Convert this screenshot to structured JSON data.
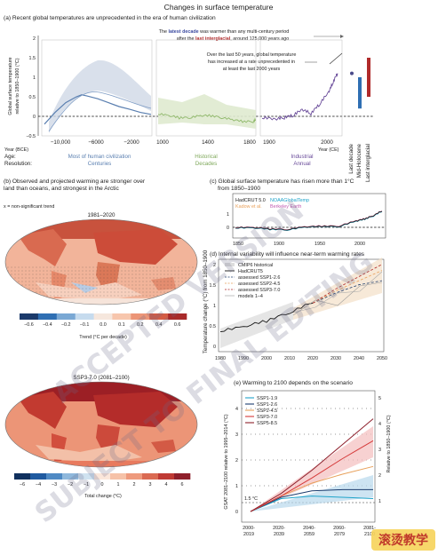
{
  "figure": {
    "title": "Changes in surface temperature",
    "watermark_lines": [
      "ACCEPTED VERSION",
      "SUBJECT TO FINAL EDITING"
    ],
    "logo_text": "滚烫教学"
  },
  "colors": {
    "pi_blue": "#5a7fb0",
    "hist_green": "#8fb86a",
    "industrial_purple": "#6a4c9a",
    "last_decade": "#4a4a8a",
    "mid_holocene": "#2f6fb3",
    "last_interglacial": "#b02a2a",
    "ssp119": "#1ea3c9",
    "ssp126": "#1d3d6e",
    "ssp245": "#e8a05a",
    "ssp370": "#d53a3a",
    "ssp585": "#8e1f2b"
  },
  "panel_a": {
    "heading": "(a) Recent global temperatures are unprecedented in the era of human civilization",
    "annotation_top_1a": "The ",
    "annotation_top_1b": "latest decade",
    "annotation_top_1c": " was warmer than any multi-century period",
    "annotation_top_2a": "after the ",
    "annotation_top_2b": "last interglacial",
    "annotation_top_2c": ", around 125,000 years ago",
    "annotation_mid_1": "Over the last 50 years, global temperature",
    "annotation_mid_2": "has increased at a rate unprecedented in",
    "annotation_mid_3": "at least the last 2000 years",
    "ylabel_1": "Global surface temperature",
    "ylabel_2": "relative to 1850–1900 (°C)",
    "yticks": [
      "2",
      "1.5",
      "1",
      "0.5",
      "0",
      "−0.5"
    ],
    "xlabel_bce": "Year (BCE)",
    "xlabel_ce": "Year (CE)",
    "xticks_1": [
      "−10,000",
      "−6000",
      "−2000"
    ],
    "xticks_2": [
      "1000",
      "1400",
      "1800"
    ],
    "xticks_3": [
      "1900",
      "2000"
    ],
    "age_label": "Age:",
    "resolution_label": "Resolution:",
    "ages": [
      "Most of human civilization",
      "Historical",
      "Industrial"
    ],
    "resolutions": [
      "Centuries",
      "Decades",
      "Annual"
    ],
    "bar_labels": [
      "Last decade",
      "Mid-Holocene",
      "Last interglacial"
    ]
  },
  "panel_b": {
    "heading_1": "(b) Observed and projected warming are stronger over",
    "heading_2": "land than oceans, and strongest in the Arctic",
    "note": "x = non-significant trend",
    "map1_title": "1981–2020",
    "map2_title": "SSP3-7.0 (2081–2100)",
    "cbar1_ticks": [
      "−0.6",
      "−0.4",
      "−0.2",
      "−0.1",
      "0.0",
      "0.1",
      "0.2",
      "0.4",
      "0.6"
    ],
    "cbar1_label": "Trend (°C per decade)",
    "cbar2_ticks": [
      "−6",
      "−4",
      "−3",
      "−2",
      "−1",
      "0",
      "1",
      "2",
      "3",
      "4",
      "6"
    ],
    "cbar2_label": "Total change (°C)"
  },
  "panel_c": {
    "heading_1": "(c) Global surface temperature has risen more than 1°C",
    "heading_2": "from 1850–1900",
    "legend": [
      "HadCRUT 5.0",
      "NOAAGlobalTemp",
      "Kadow et al.",
      "Berkeley Earth"
    ],
    "xticks": [
      "1850",
      "1900",
      "1950",
      "2000"
    ],
    "yticks": [
      "1",
      "0"
    ]
  },
  "panel_d": {
    "heading": "(d) Internal variability will influence near-term warming rates",
    "ylabel": "Temperature change (°C) from 1850–1900",
    "legend": [
      "CMIP6 historical",
      "HadCRUT5",
      "assessed SSP1-2.6",
      "assessed SSP2-4.5",
      "assessed SSP3-7.0",
      "models 1–4"
    ],
    "yticks": [
      "2",
      "1.5",
      "1",
      "0.5",
      "0"
    ],
    "xticks": [
      "1980",
      "1990",
      "2000",
      "2010",
      "2020",
      "2030",
      "2040",
      "2050"
    ]
  },
  "panel_e": {
    "heading": "(e) Warming to 2100 depends on the scenario",
    "ylabel_left": "GSAT 2081–2100 relative to 1995–2014 (°C)",
    "ylabel_right": "Relative to 1850–1900 (°C)",
    "yticks_left": [
      "4",
      "3",
      "2",
      "1",
      "0"
    ],
    "yticks_right": [
      "5",
      "4",
      "3",
      "2",
      "1"
    ],
    "xticks": [
      "2000-\n2019",
      "2020-\n2039",
      "2040-\n2059",
      "2060-\n2079",
      "2081-\n2100"
    ],
    "threshold_label": "1.5 °C",
    "legend": [
      "SSP1-1.9",
      "SSP1-2.6",
      "SSP2-4.5",
      "SSP3-7.0",
      "SSP5-8.5"
    ]
  },
  "chart_data": [
    {
      "panel": "a",
      "type": "line",
      "ylim": [
        -0.5,
        2
      ],
      "series": [
        {
          "segment": "holocene",
          "x": [
            -10000,
            -9000,
            -8000,
            -7000,
            -6500,
            -6000,
            -5000,
            -4000,
            -3000,
            -2000,
            -1000,
            0
          ],
          "y": [
            -0.2,
            0.1,
            0.35,
            0.5,
            0.55,
            0.52,
            0.45,
            0.35,
            0.25,
            0.18,
            0.1,
            0.05
          ]
        },
        {
          "segment": "common_era",
          "x": [
            0,
            200,
            400,
            600,
            800,
            1000,
            1200,
            1400,
            1600,
            1800,
            1850
          ],
          "y": [
            0.05,
            0.0,
            -0.05,
            -0.05,
            0.0,
            0.0,
            -0.05,
            -0.1,
            -0.15,
            -0.15,
            -0.1
          ]
        },
        {
          "segment": "industrial",
          "x": [
            1850,
            1880,
            1900,
            1920,
            1940,
            1960,
            1980,
            2000,
            2010,
            2020
          ],
          "y": [
            -0.05,
            -0.1,
            -0.05,
            0.0,
            0.15,
            0.05,
            0.3,
            0.6,
            0.85,
            1.1
          ]
        }
      ],
      "bars": [
        {
          "name": "Last decade",
          "value": 1.1
        },
        {
          "name": "Mid-Holocene",
          "low": 0.2,
          "high": 1.0
        },
        {
          "name": "Last interglacial",
          "low": 0.5,
          "high": 1.5
        }
      ]
    },
    {
      "panel": "c",
      "type": "line",
      "ylim": [
        -0.4,
        1.3
      ],
      "x": [
        1850,
        1870,
        1890,
        1910,
        1930,
        1950,
        1970,
        1990,
        2000,
        2010,
        2020
      ],
      "series": [
        {
          "name": "HadCRUT 5.0",
          "values": [
            -0.05,
            -0.05,
            -0.15,
            -0.2,
            0.0,
            0.05,
            0.05,
            0.45,
            0.6,
            0.85,
            1.2
          ]
        }
      ]
    },
    {
      "panel": "d",
      "type": "line",
      "ylim": [
        0,
        2.2
      ],
      "x": [
        1980,
        1990,
        2000,
        2010,
        2020,
        2030,
        2040,
        2050
      ],
      "series": [
        {
          "name": "HadCRUT5",
          "values": [
            0.4,
            0.5,
            0.65,
            0.85,
            1.1,
            null,
            null,
            null
          ]
        },
        {
          "name": "assessed SSP1-2.6",
          "values": [
            null,
            null,
            null,
            null,
            1.1,
            1.35,
            1.55,
            1.65
          ]
        },
        {
          "name": "assessed SSP2-4.5",
          "values": [
            null,
            null,
            null,
            null,
            1.1,
            1.4,
            1.65,
            1.9
          ]
        },
        {
          "name": "assessed SSP3-7.0",
          "values": [
            null,
            null,
            null,
            null,
            1.1,
            1.45,
            1.75,
            2.05
          ]
        }
      ]
    },
    {
      "panel": "e",
      "type": "line",
      "ylim": [
        -0.4,
        4.6
      ],
      "x": [
        2010,
        2030,
        2050,
        2070,
        2090
      ],
      "series": [
        {
          "name": "SSP1-1.9",
          "values": [
            0.0,
            0.5,
            0.6,
            0.55,
            0.5
          ]
        },
        {
          "name": "SSP1-2.6",
          "values": [
            0.0,
            0.55,
            0.8,
            0.85,
            0.85
          ]
        },
        {
          "name": "SSP2-4.5",
          "values": [
            0.0,
            0.6,
            1.1,
            1.45,
            1.75
          ]
        },
        {
          "name": "SSP3-7.0",
          "values": [
            0.0,
            0.6,
            1.3,
            2.05,
            2.75
          ]
        },
        {
          "name": "SSP5-8.5",
          "values": [
            0.0,
            0.7,
            1.6,
            2.6,
            3.6
          ]
        }
      ]
    }
  ]
}
